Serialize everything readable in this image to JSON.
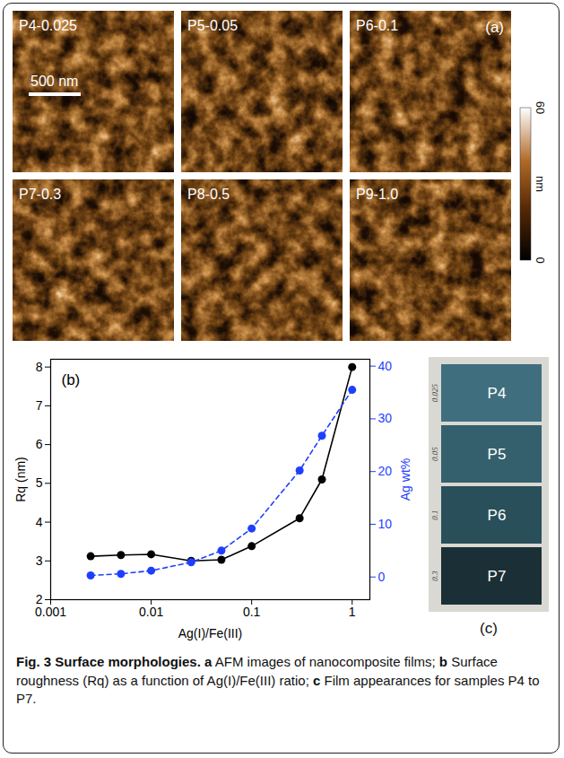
{
  "chart_data": {
    "type": "line",
    "x": [
      0.0025,
      0.005,
      0.01,
      0.025,
      0.05,
      0.1,
      0.3,
      0.5,
      1.0
    ],
    "xlabel": "Ag(I)/Fe(III)",
    "ylabel": "Rq (nm)",
    "y2label": "Ag wt%",
    "log": "x",
    "xlim": [
      0.001,
      1.5
    ],
    "xticks": [
      0.001,
      0.01,
      0.1,
      1
    ],
    "ylim": [
      2,
      8.2
    ],
    "yticks": [
      2,
      3,
      4,
      5,
      6,
      7,
      8
    ],
    "y2lim": [
      -4.3,
      41.3
    ],
    "y2ticks": [
      0,
      10,
      20,
      30,
      40
    ],
    "annotations": [
      "(b)"
    ],
    "series": [
      {
        "name": "Rq (nm)",
        "color": "#000000",
        "marker": "circle",
        "line_style": "solid",
        "values": [
          3.12,
          3.15,
          3.17,
          3.0,
          3.03,
          3.38,
          4.1,
          5.1,
          8.0
        ]
      },
      {
        "name": "Ag wt%",
        "color": "#1f3fff",
        "marker": "circle",
        "line_style": "dashed",
        "axis": "y2",
        "values": [
          0.3,
          0.6,
          1.2,
          2.8,
          5.0,
          9.2,
          20.2,
          26.8,
          35.5
        ]
      }
    ]
  },
  "panel_a": {
    "label": "(a)",
    "images": [
      "P4-0.025",
      "P5-0.05",
      "P6-0.1",
      "P7-0.3",
      "P8-0.5",
      "P9-1.0"
    ],
    "scale_bar": "500 nm",
    "colorbar": {
      "range": [
        0,
        60
      ],
      "ticks": [
        0,
        60
      ],
      "label": "nm"
    }
  },
  "panel_c": {
    "label": "(c)",
    "samples": [
      "P4",
      "P5",
      "P6",
      "P7"
    ],
    "handwritten": [
      "0.025",
      "0.05",
      "0.1",
      "0.3"
    ]
  },
  "caption": {
    "title": "Fig. 3 Surface morphologies.",
    "parts": [
      {
        "letter": "a",
        "text": "AFM images of nanocomposite films;"
      },
      {
        "letter": "b",
        "text": "Surface roughness (Rq) as a function of Ag(I)/Fe(III) ratio;"
      },
      {
        "letter": "c",
        "text": "Film appearances for samples P4 to P7."
      }
    ]
  }
}
